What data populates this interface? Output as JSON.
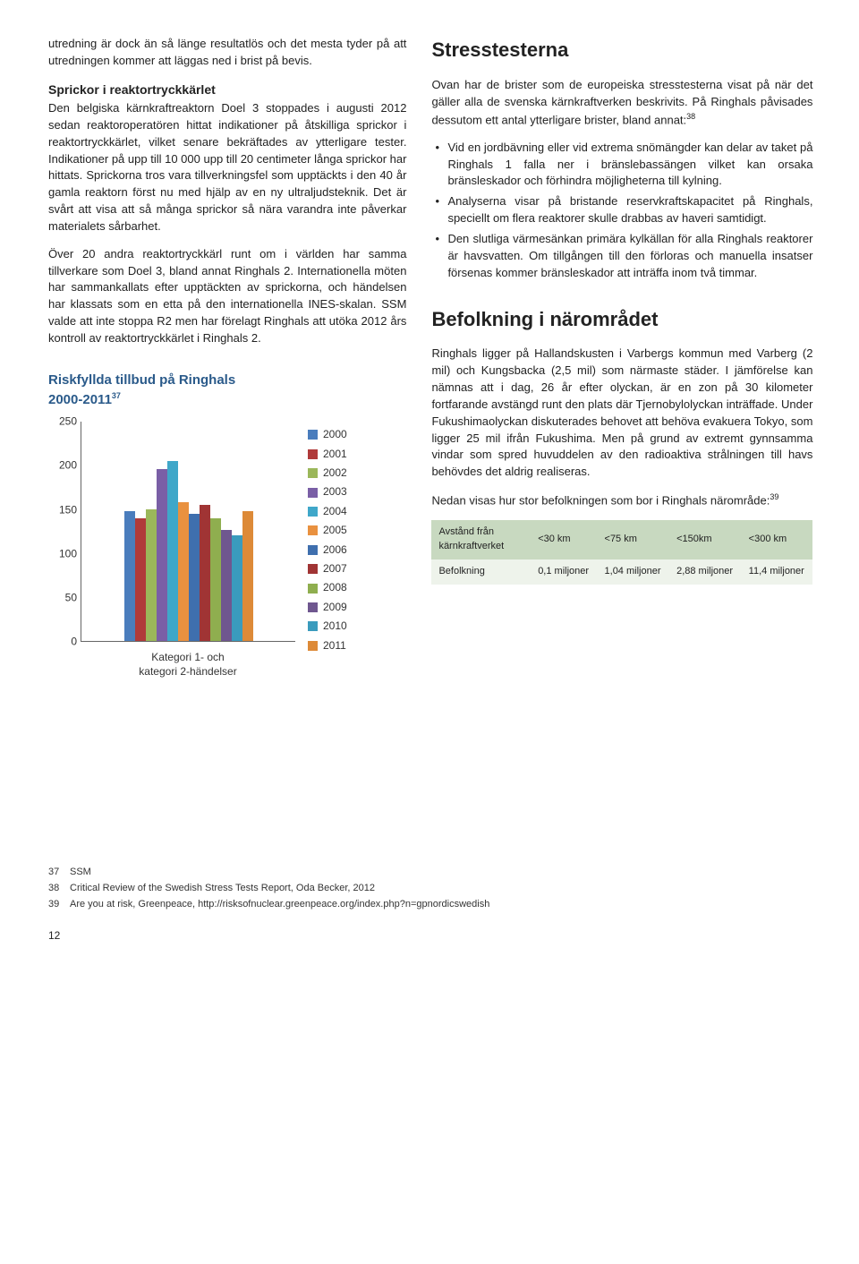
{
  "left": {
    "intro": "utredning är dock än så länge resultatlös och det mesta tyder på att utredningen kommer att läggas ned i brist på bevis.",
    "sub_heading": "Sprickor i reaktortryckkärlet",
    "para1": "Den belgiska kärnkraftreaktorn Doel 3 stoppades i augusti 2012 sedan reaktoroperatören hittat indikationer på åtskilliga sprickor i reaktortryckkärlet, vilket senare bekräftades av ytterligare tester. Indikationer på upp till 10 000 upp till 20 centimeter långa sprickor har hittats. Sprickorna tros vara tillverkningsfel som upptäckts i den 40 år gamla reaktorn först nu med hjälp av en ny ultraljudsteknik. Det är svårt att visa att så många sprickor så nära varandra inte påverkar materialets sårbarhet.",
    "para2": "Över 20 andra reaktortryckkärl runt om i världen har samma tillverkare som Doel 3, bland annat Ringhals 2. Internationella möten har sammankallats efter upptäckten av sprickorna, och händelsen har klassats som en etta på den internationella INES-skalan. SSM valde att inte stoppa R2 men har förelagt Ringhals att utöka 2012 års kontroll av reaktortryckkärlet i Ringhals 2.",
    "chart_title_1": "Riskfyllda tillbud på Ringhals",
    "chart_title_2": "2000-2011",
    "chart_ref": "37",
    "chart": {
      "ylim_max": 250,
      "ytick_step": 50,
      "yticks": [
        0,
        50,
        100,
        150,
        200,
        250
      ],
      "years": [
        "2000",
        "2001",
        "2002",
        "2003",
        "2004",
        "2005",
        "2006",
        "2007",
        "2008",
        "2009",
        "2010",
        "2011"
      ],
      "values": [
        148,
        140,
        150,
        195,
        205,
        158,
        145,
        155,
        140,
        126,
        120,
        148
      ],
      "colors": [
        "#4a7dbd",
        "#b03a3a",
        "#9bb75a",
        "#7a5fa6",
        "#3fa7c9",
        "#e9913f",
        "#3f6fae",
        "#a03434",
        "#8fae4f",
        "#6f578f",
        "#3a9bbd",
        "#dd8a38"
      ],
      "xlabel_l1": "Kategori 1- och",
      "xlabel_l2": "kategori 2-händelser"
    }
  },
  "right": {
    "h_stress": "Stresstesterna",
    "stress_p1": "Ovan har de brister som de europeiska stresstesterna visat på när det gäller alla de svenska kärnkraftverken beskrivits. På Ringhals påvisades dessutom ett antal ytterligare brister, bland annat:",
    "stress_ref": "38",
    "bullets": [
      "Vid en jordbävning eller vid extrema snömängder kan delar av taket på Ringhals 1 falla ner i bränslebassängen vilket kan orsaka bränsleskador och förhindra möjligheterna till kylning.",
      "Analyserna visar på bristande reservkraftskapacitet på Ringhals, speciellt om flera reaktorer skulle drabbas av haveri samtidigt.",
      "Den slutliga värmesänkan primära kylkällan för alla Ringhals reaktorer är havsvatten. Om tillgången till den förloras och manuella insatser försenas kommer bränsleskador att inträffa inom två timmar."
    ],
    "h_pop": "Befolkning i närområdet",
    "pop_p1": "Ringhals ligger på Hallandskusten i Varbergs kommun med Varberg (2 mil) och Kungsbacka (2,5 mil) som närmaste städer. I jämförelse kan nämnas att i dag, 26 år efter olyckan, är en zon på 30 kilometer fortfarande avstängd runt den plats där Tjernobylolyckan inträffade. Under Fukushimaolyckan diskuterades behovet att behöva evakuera Tokyo, som ligger 25 mil ifrån Fukushima. Men på grund av extremt gynnsamma vindar som spred huvuddelen av den radioaktiva strålningen till havs behövdes det aldrig realiseras.",
    "pop_p2": "Nedan visas hur stor befolkningen som bor i Ringhals närområde:",
    "pop_ref": "39",
    "table": {
      "head": [
        "Avstånd från kärnkraftverket",
        "<30 km",
        "<75 km",
        "<150km",
        "<300 km"
      ],
      "row_label": "Befolkning",
      "row": [
        "0,1 miljoner",
        "1,04 miljoner",
        "2,88 miljoner",
        "11,4 miljoner"
      ]
    }
  },
  "footnotes": [
    {
      "n": "37",
      "t": "SSM"
    },
    {
      "n": "38",
      "t": "Critical Review of the Swedish Stress Tests Report, Oda Becker, 2012"
    },
    {
      "n": "39",
      "t": "Are you at risk, Greenpeace, http://risksofnuclear.greenpeace.org/index.php?n=gpnordicswedish"
    }
  ],
  "page_number": "12"
}
